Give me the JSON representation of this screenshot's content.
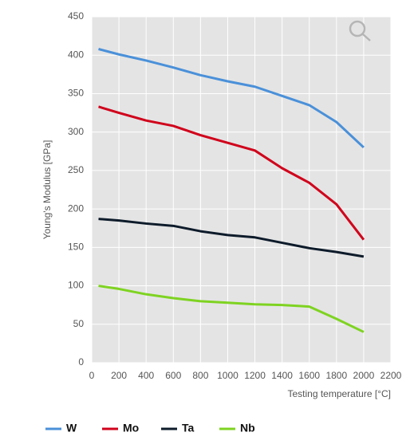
{
  "chart_data": {
    "type": "line",
    "xlabel": "Testing temperature [°C]",
    "ylabel": "Young's Modulus [GPa]",
    "x": [
      50,
      200,
      400,
      600,
      800,
      1000,
      1200,
      1400,
      1600,
      1800,
      2000
    ],
    "series": [
      {
        "name": "W",
        "color": "#4a90d9",
        "values": [
          408,
          401,
          393,
          384,
          374,
          366,
          359,
          347,
          335,
          313,
          280
        ]
      },
      {
        "name": "Mo",
        "color": "#d0021b",
        "values": [
          333,
          325,
          315,
          308,
          296,
          286,
          276,
          253,
          234,
          206,
          160
        ]
      },
      {
        "name": "Ta",
        "color": "#0d1b2a",
        "values": [
          187,
          185,
          181,
          178,
          171,
          166,
          163,
          156,
          149,
          144,
          138
        ]
      },
      {
        "name": "Nb",
        "color": "#7ed321",
        "values": [
          100,
          96,
          89,
          84,
          80,
          78,
          76,
          75,
          73,
          57,
          40
        ]
      }
    ],
    "xlim": [
      0,
      2200
    ],
    "xticks": [
      0,
      200,
      400,
      600,
      800,
      1000,
      1200,
      1400,
      1600,
      1800,
      2000,
      2200
    ],
    "ylim": [
      0,
      450
    ],
    "yticks": [
      0,
      50,
      100,
      150,
      200,
      250,
      300,
      350,
      400,
      450
    ],
    "grid": true,
    "legend": "bottom"
  }
}
